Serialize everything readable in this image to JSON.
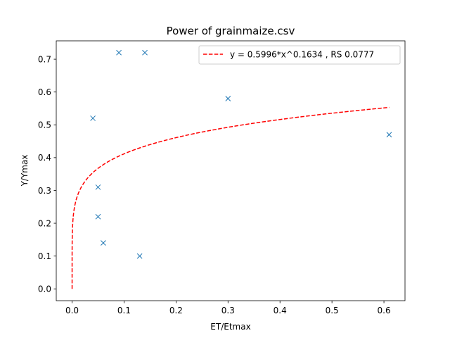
{
  "chart_data": {
    "type": "scatter",
    "title": "Power of grainmaize.csv",
    "xlabel": "ET/Etmax",
    "ylabel": "Y/Ymax",
    "xlim": [
      -0.0305,
      0.6405
    ],
    "ylim": [
      -0.036,
      0.756
    ],
    "xticks": [
      0.0,
      0.1,
      0.2,
      0.3,
      0.4,
      0.5,
      0.6
    ],
    "xtick_labels": [
      "0.0",
      "0.1",
      "0.2",
      "0.3",
      "0.4",
      "0.5",
      "0.6"
    ],
    "yticks": [
      0.0,
      0.1,
      0.2,
      0.3,
      0.4,
      0.5,
      0.6,
      0.7
    ],
    "ytick_labels": [
      "0.0",
      "0.1",
      "0.2",
      "0.3",
      "0.4",
      "0.5",
      "0.6",
      "0.7"
    ],
    "grid": false,
    "legend_position": "top-right",
    "series": [
      {
        "kind": "scatter",
        "marker": "x",
        "color": "#1f77b4",
        "x": [
          0.09,
          0.14,
          0.3,
          0.04,
          0.61,
          0.05,
          0.05,
          0.06,
          0.13
        ],
        "y": [
          0.72,
          0.72,
          0.58,
          0.52,
          0.47,
          0.31,
          0.22,
          0.14,
          0.1
        ]
      },
      {
        "kind": "line",
        "name": "y = 0.5996*x^0.1634 , RS 0.0777",
        "color": "#ff0000",
        "dash": "dashed",
        "coefficient": 0.5996,
        "exponent": 0.1634,
        "x_range": [
          0.0,
          0.61
        ]
      }
    ]
  }
}
